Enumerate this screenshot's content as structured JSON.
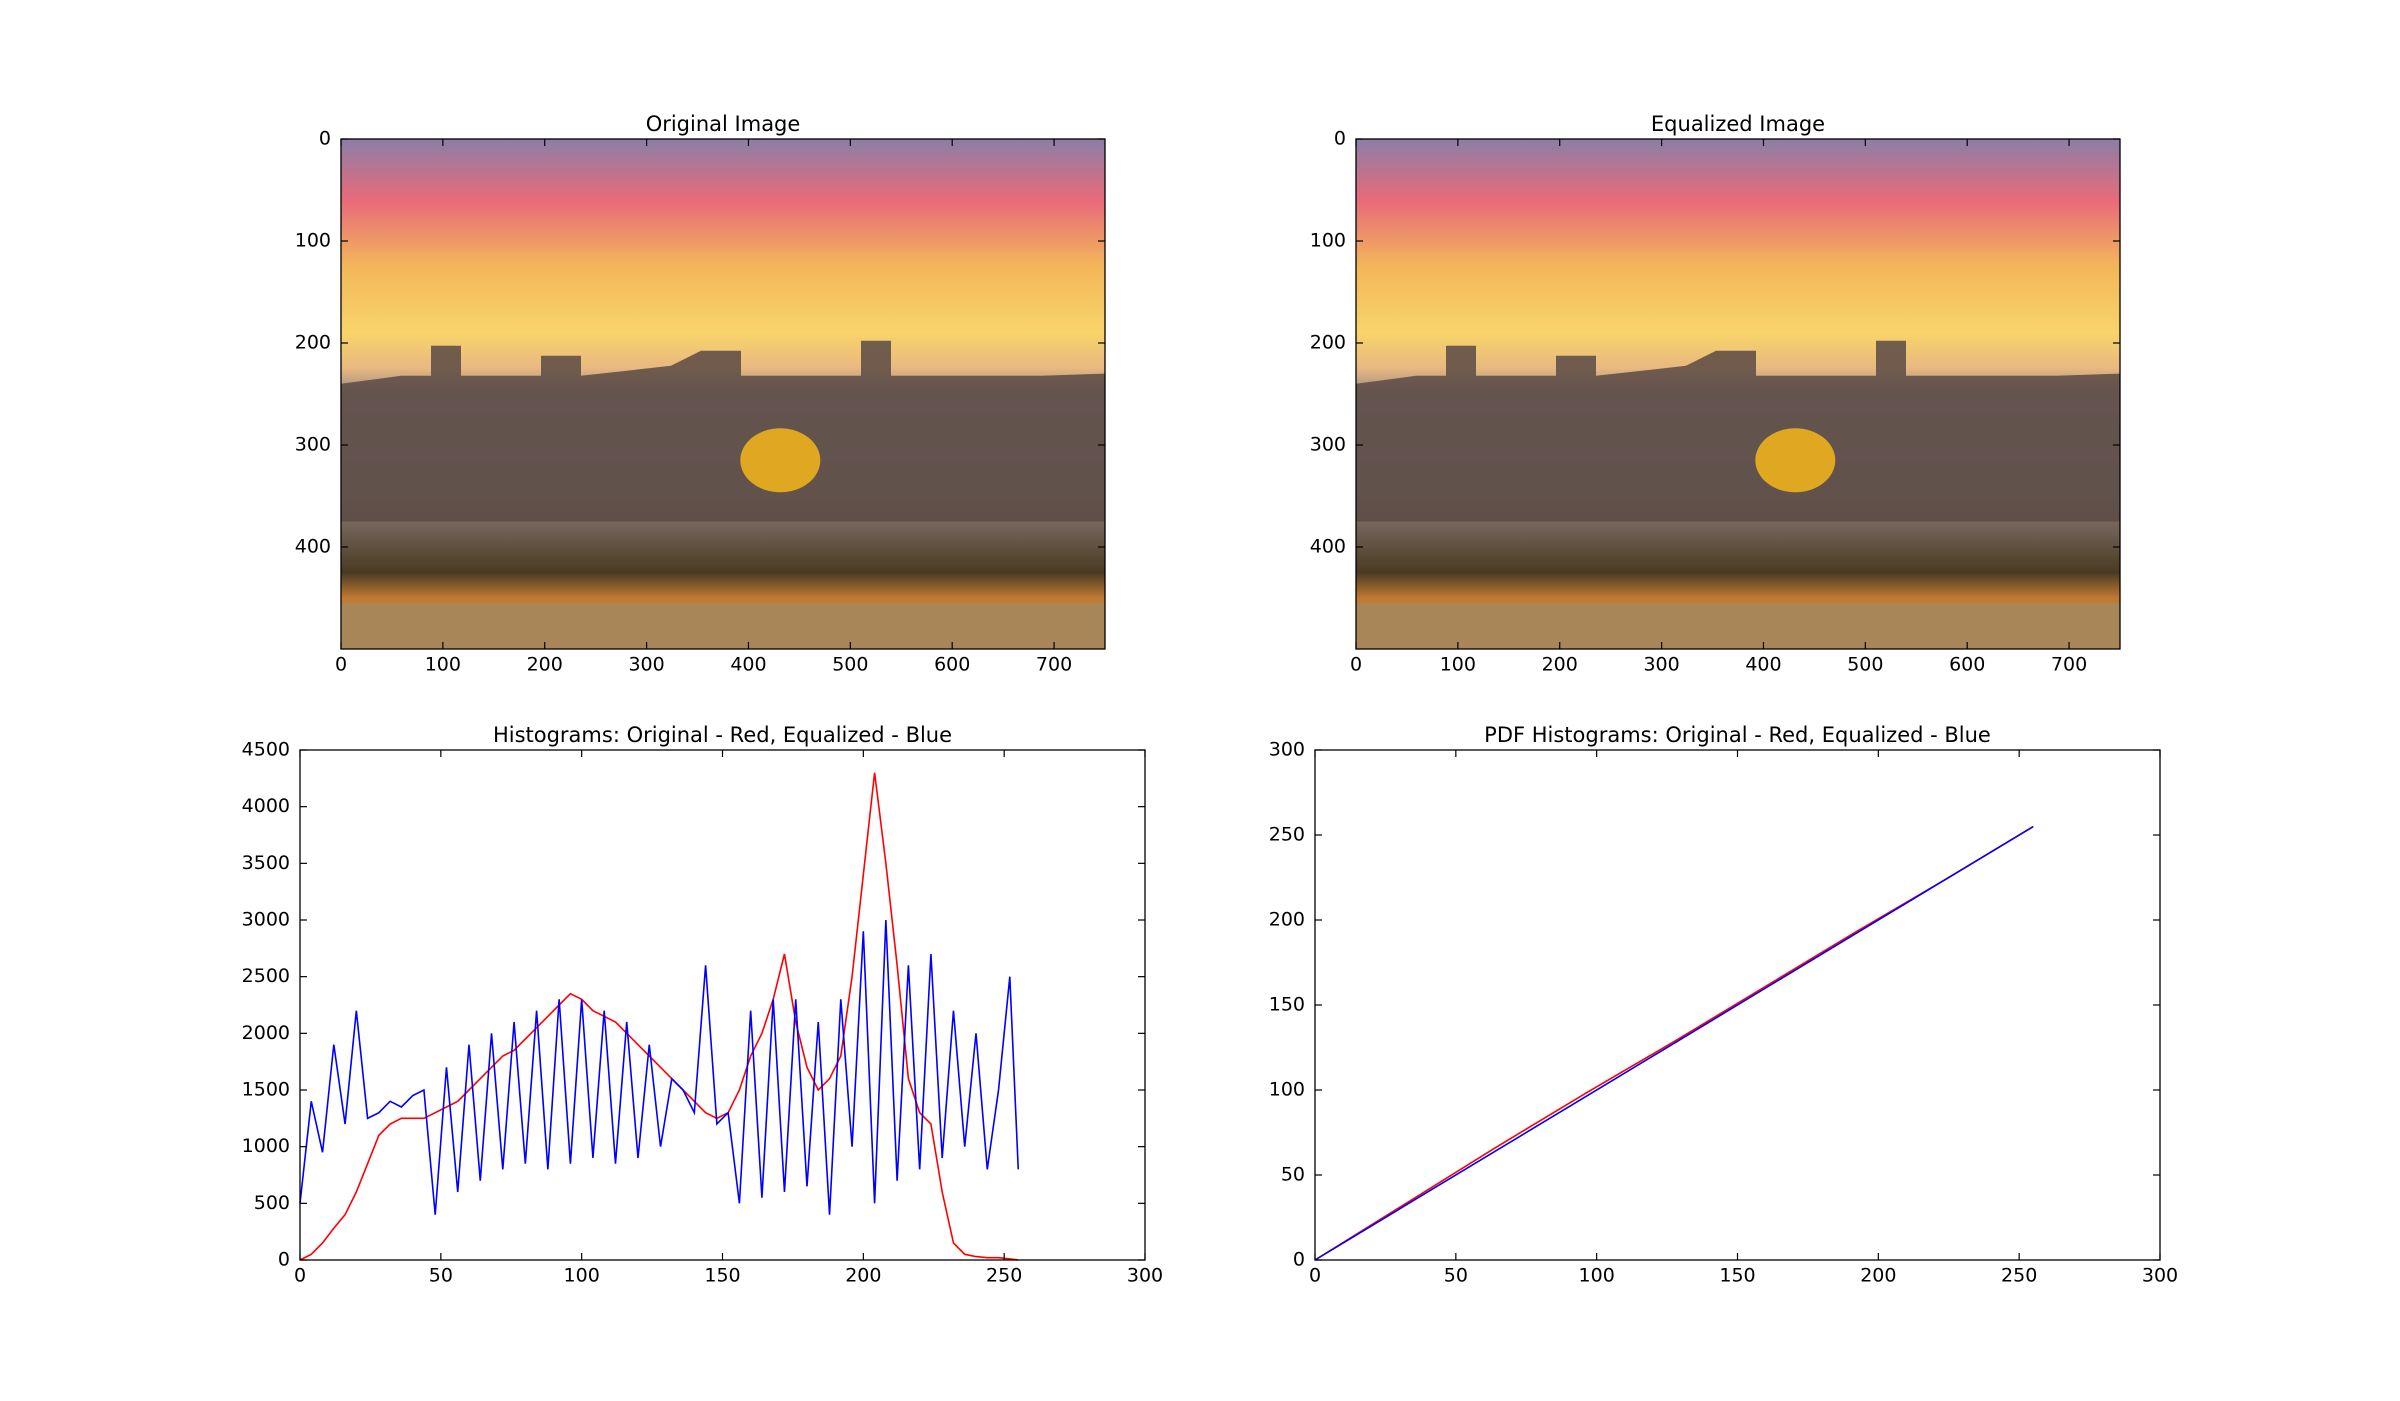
{
  "chart_data": [
    {
      "type": "image",
      "title": "Original Image",
      "xlim": [
        0,
        750
      ],
      "ylim": [
        500,
        0
      ],
      "xticks": [
        0,
        100,
        200,
        300,
        400,
        500,
        600,
        700
      ],
      "yticks": [
        0,
        100,
        200,
        300,
        400
      ]
    },
    {
      "type": "image",
      "title": "Equalized Image",
      "xlim": [
        0,
        750
      ],
      "ylim": [
        500,
        0
      ],
      "xticks": [
        0,
        100,
        200,
        300,
        400,
        500,
        600,
        700
      ],
      "yticks": [
        0,
        100,
        200,
        300,
        400
      ]
    },
    {
      "type": "line",
      "title": "Histograms: Original - Red, Equalized - Blue",
      "xlim": [
        0,
        300
      ],
      "ylim": [
        0,
        4500
      ],
      "xticks": [
        0,
        50,
        100,
        150,
        200,
        250,
        300
      ],
      "yticks": [
        0,
        500,
        1000,
        1500,
        2000,
        2500,
        3000,
        3500,
        4000,
        4500
      ],
      "x": [
        0,
        4,
        8,
        12,
        16,
        20,
        24,
        28,
        32,
        36,
        40,
        44,
        48,
        52,
        56,
        60,
        64,
        68,
        72,
        76,
        80,
        84,
        88,
        92,
        96,
        100,
        104,
        108,
        112,
        116,
        120,
        124,
        128,
        132,
        136,
        140,
        144,
        148,
        152,
        156,
        160,
        164,
        168,
        172,
        176,
        180,
        184,
        188,
        192,
        196,
        200,
        204,
        208,
        212,
        216,
        220,
        224,
        228,
        232,
        236,
        240,
        244,
        248,
        252,
        255
      ],
      "series": [
        {
          "color": "#ff0000",
          "values": [
            0,
            50,
            150,
            280,
            400,
            600,
            850,
            1100,
            1200,
            1250,
            1250,
            1250,
            1300,
            1350,
            1400,
            1500,
            1600,
            1700,
            1800,
            1850,
            1950,
            2050,
            2150,
            2250,
            2350,
            2300,
            2200,
            2150,
            2100,
            2000,
            1900,
            1800,
            1700,
            1600,
            1500,
            1400,
            1300,
            1250,
            1300,
            1500,
            1800,
            2000,
            2300,
            2700,
            2100,
            1700,
            1500,
            1600,
            1800,
            2500,
            3400,
            4300,
            3500,
            2600,
            1600,
            1300,
            1200,
            600,
            150,
            50,
            30,
            20,
            20,
            10,
            0
          ]
        },
        {
          "color": "#0000ff",
          "values": [
            500,
            1400,
            950,
            1900,
            1200,
            2200,
            1250,
            1300,
            1400,
            1350,
            1450,
            1500,
            400,
            1700,
            600,
            1900,
            700,
            2000,
            800,
            2100,
            850,
            2200,
            800,
            2300,
            850,
            2300,
            900,
            2200,
            850,
            2100,
            900,
            1900,
            1000,
            1600,
            1500,
            1300,
            2600,
            1200,
            1300,
            500,
            2200,
            550,
            2300,
            600,
            2300,
            650,
            2100,
            400,
            2300,
            1000,
            2900,
            500,
            3000,
            700,
            2600,
            800,
            2700,
            900,
            2200,
            1000,
            2000,
            800,
            1500,
            2500,
            800
          ]
        }
      ]
    },
    {
      "type": "line",
      "title": "PDF Histograms: Original - Red, Equalized - Blue",
      "xlim": [
        0,
        300
      ],
      "ylim": [
        0,
        300
      ],
      "xticks": [
        0,
        50,
        100,
        150,
        200,
        250,
        300
      ],
      "yticks": [
        0,
        50,
        100,
        150,
        200,
        250,
        300
      ],
      "x": [
        0,
        32,
        64,
        96,
        128,
        160,
        192,
        224,
        255
      ],
      "series": [
        {
          "color": "#ff0000",
          "values": [
            0,
            33,
            66,
            98,
            129,
            161,
            193,
            224,
            255
          ]
        },
        {
          "color": "#0000ff",
          "values": [
            0,
            32,
            64,
            96,
            128,
            160,
            192,
            224,
            255
          ]
        }
      ]
    }
  ]
}
